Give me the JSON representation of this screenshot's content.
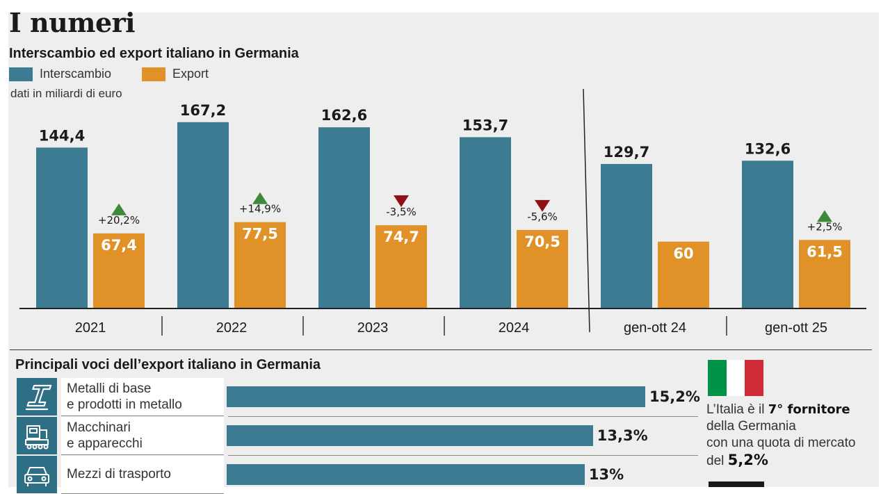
{
  "header": {
    "title": "I numeri",
    "subtitle": "Interscambio ed export italiano in Germania",
    "unit_note": "dati in miliardi di euro"
  },
  "legend": [
    {
      "label": "Interscambio",
      "color": "#3d7b93"
    },
    {
      "label": "Export",
      "color": "#e09228"
    }
  ],
  "chart_data": {
    "type": "bar",
    "categories": [
      "2021",
      "2022",
      "2023",
      "2024",
      "gen-ott 24",
      "gen-ott 25"
    ],
    "series": [
      {
        "name": "Interscambio",
        "color": "#3d7b93",
        "values": [
          144.4,
          167.2,
          162.6,
          153.7,
          129.7,
          132.6
        ],
        "labels": [
          "144,4",
          "167,2",
          "162,6",
          "153,7",
          "129,7",
          "132,6"
        ]
      },
      {
        "name": "Export",
        "color": "#e09228",
        "values": [
          67.4,
          77.5,
          74.7,
          70.5,
          60,
          61.5
        ],
        "labels": [
          "67,4",
          "77,5",
          "74,7",
          "70,5",
          "60",
          "61,5"
        ]
      }
    ],
    "export_change": [
      {
        "label": "+20,2%",
        "direction": "up"
      },
      {
        "label": "+14,9%",
        "direction": "up"
      },
      {
        "label": "-3,5%",
        "direction": "down"
      },
      {
        "label": "-5,6%",
        "direction": "down"
      },
      null,
      {
        "label": "+2,5%",
        "direction": "up"
      }
    ],
    "up_color": "#3f8a3a",
    "down_color": "#8e0f14",
    "ylim": [
      0,
      180
    ]
  },
  "voci": {
    "title": "Principali voci dell’export italiano in Germania",
    "items": [
      {
        "line1": "Metalli di base",
        "line2": "e prodotti in metallo",
        "pct": 15.2,
        "pct_label": "15,2%",
        "icon": "metal-beam-icon"
      },
      {
        "line1": "Macchinari",
        "line2": "e apparecchi",
        "pct": 13.3,
        "pct_label": "13,3%",
        "icon": "machinery-icon"
      },
      {
        "line1": "Mezzi di trasporto",
        "line2": "",
        "pct": 13,
        "pct_label": "13%",
        "icon": "car-icon"
      }
    ]
  },
  "fact": {
    "pre": "L’Italia è il ",
    "rank": "7° fornitore",
    "line2": "della Germania",
    "line3": "con una quota di mercato",
    "pre_quota": "del ",
    "quota": "5,2%",
    "flag_colors": [
      "#009246",
      "#ffffff",
      "#ce2b37"
    ]
  }
}
